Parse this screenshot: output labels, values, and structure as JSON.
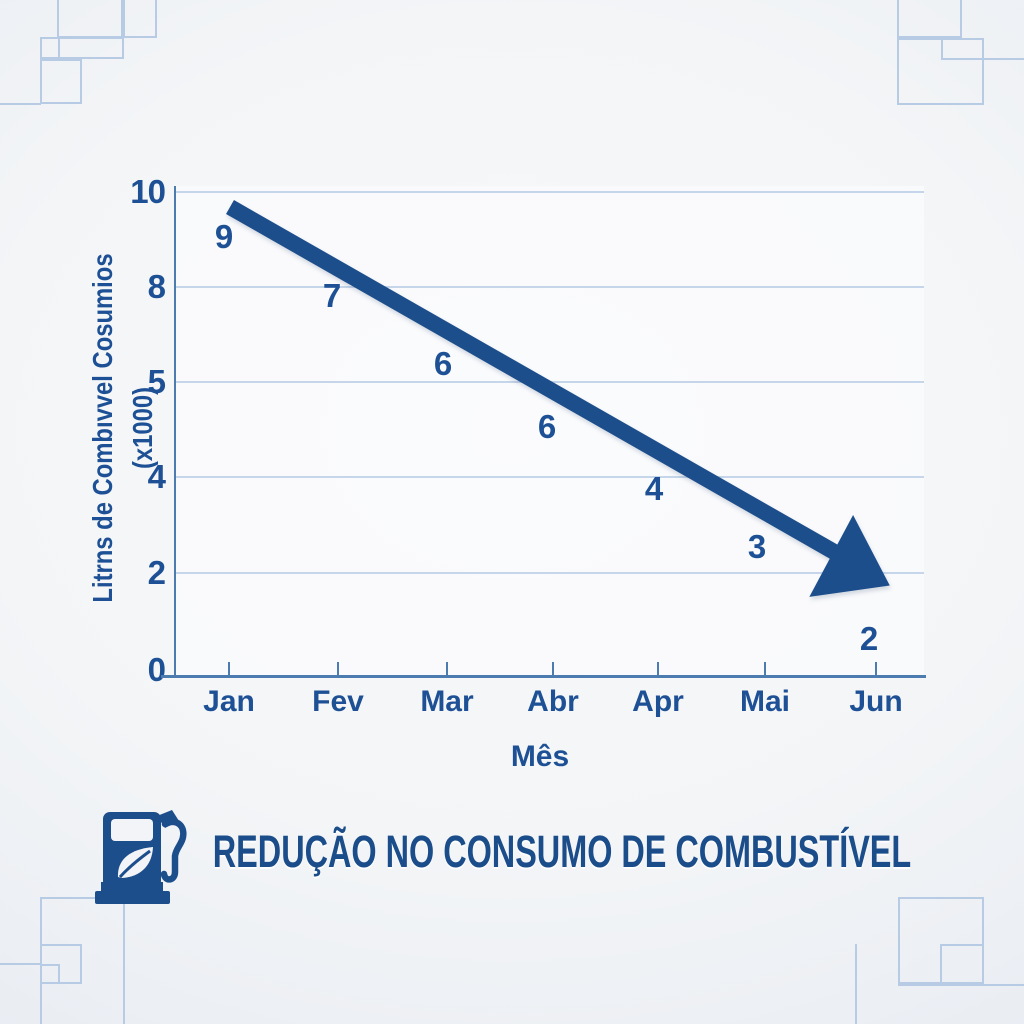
{
  "colors": {
    "accent": "#1d4e8c",
    "label": "#1d5094",
    "axis": "#4c7bb0",
    "grid": "#c6d6ea",
    "corner_decor": "#b7cbe5"
  },
  "chart": {
    "ylabel": "Litrns de Combıvvel Cosumios (x1000)",
    "xlabel": "Mês",
    "y_ticks": [
      "10",
      "8",
      "5",
      "4",
      "2",
      "0"
    ],
    "x_ticks": [
      "Jan",
      "Fev",
      "Mar",
      "Abr",
      "Apr",
      "Mai",
      "Jun"
    ],
    "point_labels": [
      "9",
      "7",
      "6",
      "6",
      "4",
      "3",
      "2"
    ]
  },
  "chart_data": {
    "type": "line",
    "categories": [
      "Jan",
      "Fev",
      "Mar",
      "Abr",
      "Apr",
      "Mai",
      "Jun"
    ],
    "values": [
      9,
      7,
      6,
      6,
      4,
      3,
      2
    ],
    "title": "REDUÇÃO NO CONSUMO DE COMBUSTÍVEL",
    "xlabel": "Mês",
    "ylabel": "Litrns de Combıvvel Cosumios (x1000)",
    "y_tick_labels": [
      10,
      8,
      5,
      4,
      2,
      0
    ],
    "ylim": [
      0,
      10
    ],
    "grid": true,
    "legend": false,
    "style": "single thick descending arrow trend line with data value labels beneath it"
  },
  "footer": {
    "title": "REDUÇÃO NO CONSUMO DE COMBUSTÍVEL",
    "icon": "eco-fuel-pump-icon"
  }
}
